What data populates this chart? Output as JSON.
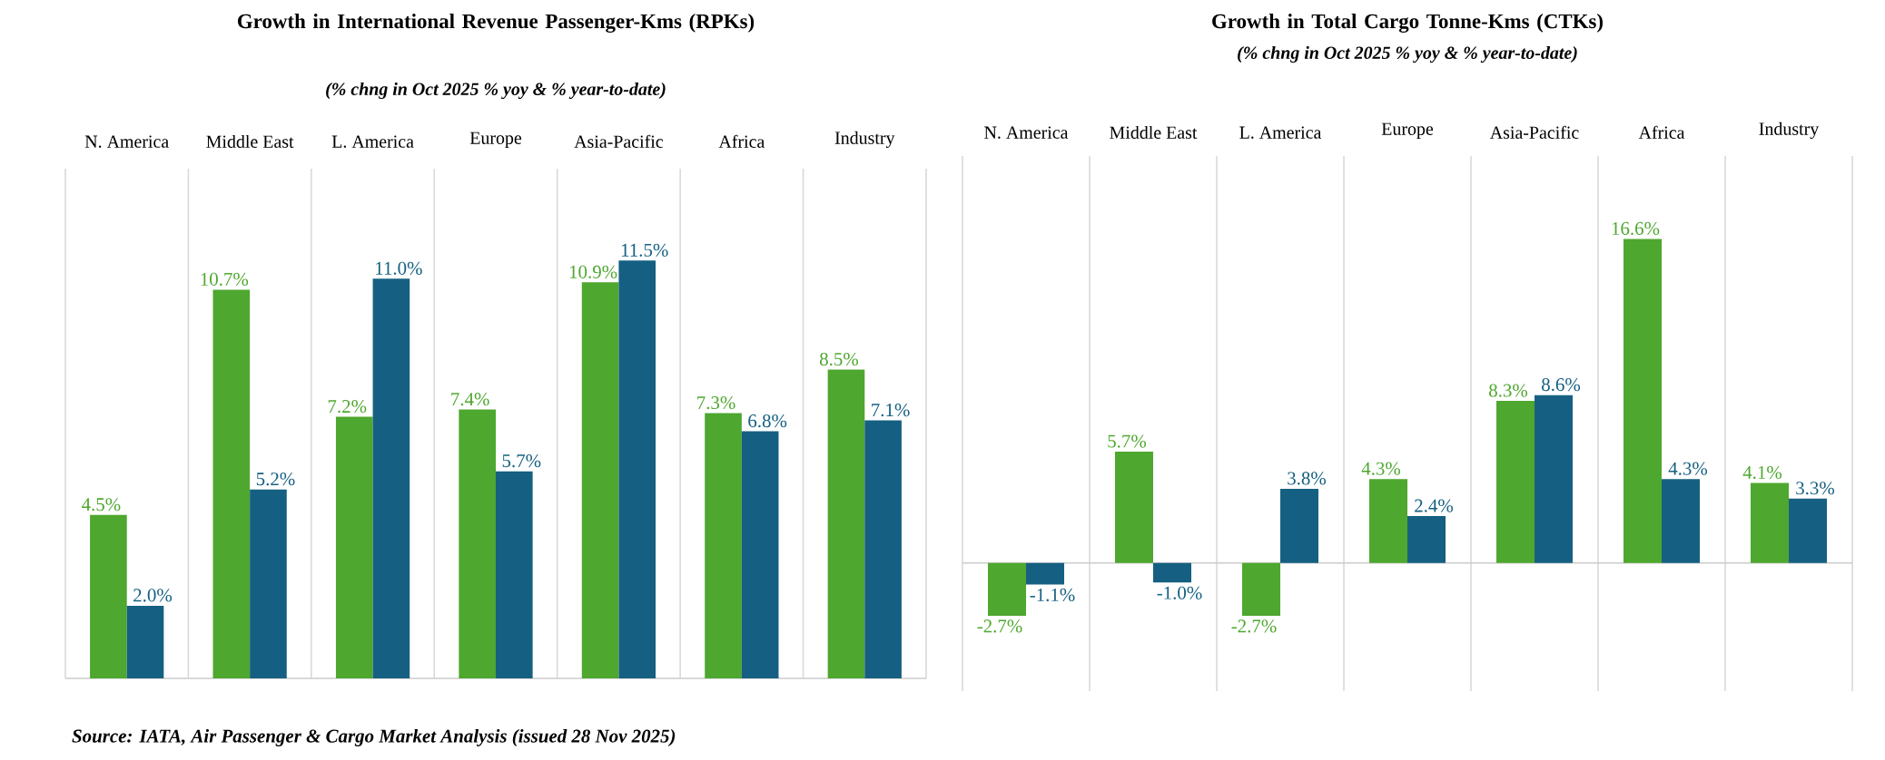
{
  "chart_data": [
    {
      "type": "bar",
      "title": "Growth in International Revenue Passenger-Kms (RPKs)",
      "subtitle": "(% chng in Oct 2025 % yoy & % year-to-date)",
      "categories": [
        "N. America",
        "Middle East",
        "L. America",
        "Europe",
        "Asia-Pacific",
        "Africa",
        "Industry"
      ],
      "series": [
        {
          "color": "#4ea72e",
          "values": [
            4.5,
            10.7,
            7.2,
            7.4,
            10.9,
            7.3,
            8.5
          ],
          "value_labels": [
            "4.5%",
            "10.7%",
            "7.2%",
            "7.4%",
            "10.9%",
            "7.3%",
            "8.5%"
          ]
        },
        {
          "color": "#156082",
          "values": [
            2.0,
            5.2,
            11.0,
            5.7,
            11.5,
            6.8,
            7.1
          ],
          "value_labels": [
            "2.0%",
            "5.2%",
            "11.0%",
            "5.7%",
            "11.5%",
            "6.8%",
            "7.1%"
          ]
        }
      ],
      "grid": "x",
      "annotations": [
        "Source: IATA, Air Passenger & Cargo Market Analysis (issued 28 Nov 2025)"
      ]
    },
    {
      "type": "bar",
      "title": "Growth in Total Cargo Tonne-Kms (CTKs)",
      "subtitle": "(% chng in Oct 2025 % yoy & % year-to-date)",
      "categories": [
        "N. America",
        "Middle East",
        "L. America",
        "Europe",
        "Asia-Pacific",
        "Africa",
        "Industry"
      ],
      "series": [
        {
          "color": "#4ea72e",
          "values": [
            -2.7,
            5.7,
            -2.7,
            4.3,
            8.3,
            16.6,
            4.1
          ],
          "value_labels": [
            "-2.7%",
            "5.7%",
            "-2.7%",
            "4.3%",
            "8.3%",
            "16.6%",
            "4.1%"
          ]
        },
        {
          "color": "#156082",
          "values": [
            -1.1,
            -1.0,
            3.8,
            2.4,
            8.6,
            4.3,
            3.3
          ],
          "value_labels": [
            "-1.1%",
            "-1.0%",
            "3.8%",
            "2.4%",
            "8.6%",
            "4.3%",
            "3.3%"
          ]
        }
      ],
      "grid": "x"
    }
  ]
}
